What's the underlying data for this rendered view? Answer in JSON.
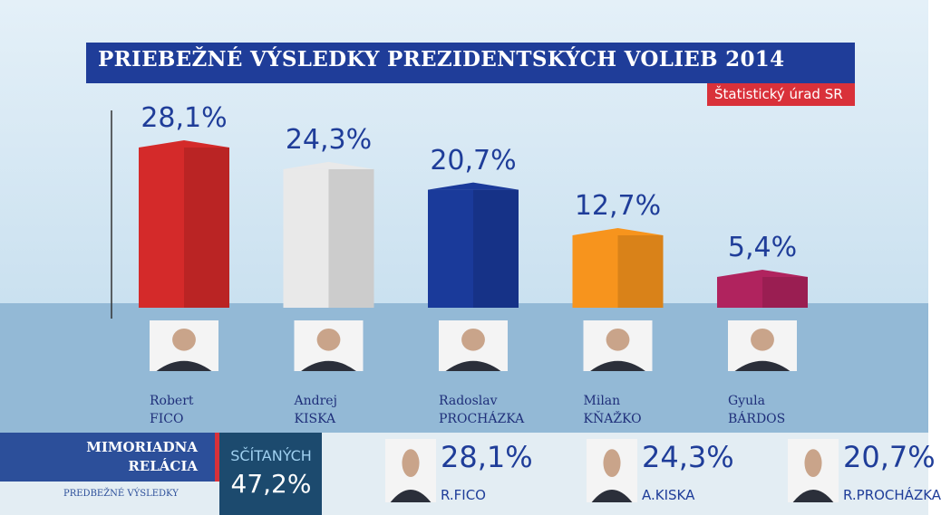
{
  "chart_data": {
    "type": "bar",
    "title": "PRIEBEŽNÉ VÝSLEDKY PREZIDENTSKÝCH VOLIEB 2014",
    "source": "Štatistický úrad SR",
    "categories": [
      "Robert\nFICO",
      "Andrej\nKISKA",
      "Radoslav\nPROCHÁZKA",
      "Milan\nKŇAŽKO",
      "Gyula\nBÁRDOS"
    ],
    "values": [
      28.1,
      24.3,
      20.7,
      12.7,
      5.4
    ],
    "value_labels": [
      "28,1%",
      "24,3%",
      "20,7%",
      "12,7%",
      "5,4%"
    ],
    "colors": [
      "#d42a2a",
      "#e9e9e9",
      "#1a3a9a",
      "#f7941d",
      "#b0235e"
    ]
  },
  "ticker": {
    "show": "MIMORIADNA\nRELÁCIA",
    "subtitle": "PREDBEŽNÉ VÝSLEDKY",
    "counted_label": "SČÍTANÝCH",
    "counted": "47,2%",
    "entries": [
      {
        "percent": "28,1%",
        "name": "R.FICO"
      },
      {
        "percent": "24,3%",
        "name": "A.KISKA"
      },
      {
        "percent": "20,7%",
        "name": "R.PROCHÁZKA"
      }
    ]
  }
}
